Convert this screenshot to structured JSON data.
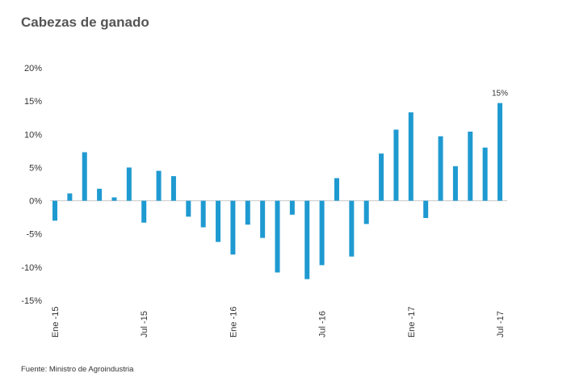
{
  "title": "Cabezas de ganado",
  "source": "Fuente: Ministro de Agroindustria",
  "chart_data": {
    "type": "bar",
    "title": "Cabezas de ganado",
    "xlabel": "",
    "ylabel": "",
    "ylim": [
      -15,
      20
    ],
    "yticks": [
      20,
      15,
      10,
      5,
      0,
      -5,
      -10,
      -15
    ],
    "ytick_labels": [
      "20%",
      "15%",
      "10%",
      "5%",
      "0%",
      "-5%",
      "-10%",
      "-15%"
    ],
    "grid": false,
    "bar_color": "#1f9ad1",
    "categories": [
      "Ene -15",
      "Feb -15",
      "Mar -15",
      "Abr -15",
      "May -15",
      "Jun -15",
      "Jul -15",
      "Ago -15",
      "Sep -15",
      "Oct -15",
      "Nov -15",
      "Dic -15",
      "Ene -16",
      "Feb -16",
      "Mar -16",
      "Abr -16",
      "May -16",
      "Jun -16",
      "Jul -16",
      "Ago -16",
      "Sep -16",
      "Oct -16",
      "Nov -16",
      "Dic -16",
      "Ene -17",
      "Feb -17",
      "Mar -17",
      "Abr -17",
      "May -17",
      "Jun -17",
      "Jul -17"
    ],
    "visible_tick_labels": [
      {
        "index": 0,
        "label": "Ene -15"
      },
      {
        "index": 6,
        "label": "Jul -15"
      },
      {
        "index": 12,
        "label": "Ene -16"
      },
      {
        "index": 18,
        "label": "Jul -16"
      },
      {
        "index": 24,
        "label": "Ene -17"
      },
      {
        "index": 30,
        "label": "Jul -17"
      }
    ],
    "values": [
      -3.0,
      1.1,
      7.3,
      1.8,
      0.5,
      5.0,
      -3.3,
      4.5,
      3.7,
      -2.4,
      -4.0,
      -6.2,
      -8.1,
      -3.6,
      -5.6,
      -10.8,
      -2.1,
      -11.8,
      -9.7,
      3.4,
      -8.4,
      -3.5,
      7.1,
      10.7,
      13.3,
      -2.6,
      9.7,
      5.2,
      10.4,
      8.0,
      14.7
    ],
    "annotations": [
      {
        "index": 30,
        "text": "15%"
      }
    ]
  }
}
